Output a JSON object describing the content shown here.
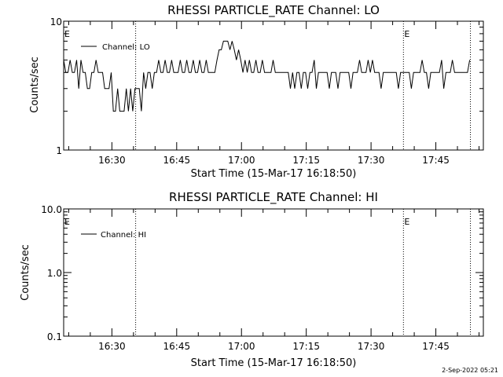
{
  "footer": {
    "timestamp": "2-Sep-2022 05:21"
  },
  "chart_data": [
    {
      "type": "line",
      "title": "RHESSI PARTICLE_RATE Channel: LO",
      "xlabel": "Start Time (15-Mar-17 16:18:50)",
      "ylabel": "Counts/sec",
      "yscale": "log",
      "xlim": [
        "16:18:50",
        "17:56:00"
      ],
      "ylim": [
        1,
        10
      ],
      "x_ticks": [
        "16:30",
        "16:45",
        "17:00",
        "17:15",
        "17:30",
        "17:45"
      ],
      "y_ticks": [
        "1",
        "10"
      ],
      "legend": {
        "entries": [
          "Channel: LO"
        ],
        "placement": "top-left"
      },
      "event_markers": {
        "times": [
          "16:35:30",
          "17:37:30",
          "17:53:00"
        ],
        "labels": [
          {
            "time": "16:18:50",
            "text": "E"
          },
          {
            "time": "17:37:30",
            "text": "E"
          }
        ]
      },
      "series": [
        {
          "name": "Channel: LO",
          "x": [
            "16:18:50",
            "16:19:20",
            "16:19:50",
            "16:20:20",
            "16:20:50",
            "16:21:20",
            "16:21:50",
            "16:22:20",
            "16:22:50",
            "16:23:20",
            "16:23:50",
            "16:24:20",
            "16:24:50",
            "16:25:20",
            "16:25:50",
            "16:26:20",
            "16:26:50",
            "16:27:20",
            "16:27:50",
            "16:28:20",
            "16:28:50",
            "16:29:20",
            "16:29:50",
            "16:30:20",
            "16:30:50",
            "16:31:20",
            "16:31:50",
            "16:32:20",
            "16:32:50",
            "16:33:20",
            "16:33:50",
            "16:34:20",
            "16:34:50",
            "16:35:20",
            "16:35:50",
            "16:36:20",
            "16:36:50",
            "16:37:20",
            "16:37:50",
            "16:38:20",
            "16:38:50",
            "16:39:20",
            "16:39:50",
            "16:40:20",
            "16:40:50",
            "16:41:20",
            "16:41:50",
            "16:42:20",
            "16:42:50",
            "16:43:20",
            "16:43:50",
            "16:44:20",
            "16:44:50",
            "16:45:20",
            "16:45:50",
            "16:46:20",
            "16:46:50",
            "16:47:20",
            "16:47:50",
            "16:48:20",
            "16:48:50",
            "16:49:20",
            "16:49:50",
            "16:50:20",
            "16:50:50",
            "16:51:20",
            "16:51:50",
            "16:52:20",
            "16:52:50",
            "16:53:20",
            "16:53:50",
            "16:54:20",
            "16:54:50",
            "16:55:20",
            "16:55:50",
            "16:56:20",
            "16:56:50",
            "16:57:20",
            "16:57:50",
            "16:58:20",
            "16:58:50",
            "16:59:20",
            "16:59:50",
            "17:00:20",
            "17:00:50",
            "17:01:20",
            "17:01:50",
            "17:02:20",
            "17:02:50",
            "17:03:20",
            "17:03:50",
            "17:04:20",
            "17:04:50",
            "17:05:20",
            "17:05:50",
            "17:06:20",
            "17:06:50",
            "17:07:20",
            "17:07:50",
            "17:08:20",
            "17:08:50",
            "17:09:20",
            "17:09:50",
            "17:10:20",
            "17:10:50",
            "17:11:20",
            "17:11:50",
            "17:12:20",
            "17:12:50",
            "17:13:20",
            "17:13:50",
            "17:14:20",
            "17:14:50",
            "17:15:20",
            "17:15:50",
            "17:16:20",
            "17:16:50",
            "17:17:20",
            "17:17:50",
            "17:18:20",
            "17:18:50",
            "17:19:20",
            "17:19:50",
            "17:20:20",
            "17:20:50",
            "17:21:20",
            "17:21:50",
            "17:22:20",
            "17:22:50",
            "17:23:20",
            "17:23:50",
            "17:24:20",
            "17:24:50",
            "17:25:20",
            "17:25:50",
            "17:26:20",
            "17:26:50",
            "17:27:20",
            "17:27:50",
            "17:28:20",
            "17:28:50",
            "17:29:20",
            "17:29:50",
            "17:30:20",
            "17:30:50",
            "17:31:20",
            "17:31:50",
            "17:32:20",
            "17:32:50",
            "17:33:20",
            "17:33:50",
            "17:34:20",
            "17:34:50",
            "17:35:20",
            "17:35:50",
            "17:36:20",
            "17:36:50",
            "17:37:20",
            "17:37:50",
            "17:38:20",
            "17:38:50",
            "17:39:20",
            "17:39:50",
            "17:40:20",
            "17:40:50",
            "17:41:20",
            "17:41:50",
            "17:42:20",
            "17:42:50",
            "17:43:20",
            "17:43:50",
            "17:44:20",
            "17:44:50",
            "17:45:20",
            "17:45:50",
            "17:46:20",
            "17:46:50",
            "17:47:20",
            "17:47:50",
            "17:48:20",
            "17:48:50",
            "17:49:20",
            "17:49:50",
            "17:50:20",
            "17:50:50",
            "17:51:20",
            "17:51:50",
            "17:52:20",
            "17:52:50"
          ],
          "values": [
            5,
            4,
            4,
            5,
            4,
            4,
            5,
            3,
            5,
            4,
            4,
            3,
            3,
            4,
            4,
            5,
            4,
            4,
            4,
            3,
            3,
            3,
            4,
            2,
            2,
            3,
            2,
            2,
            2,
            3,
            2,
            3,
            2,
            3,
            3,
            3,
            2,
            4,
            3,
            4,
            4,
            3,
            4,
            4,
            5,
            4,
            4,
            5,
            4,
            4,
            5,
            4,
            4,
            4,
            5,
            4,
            4,
            5,
            4,
            4,
            5,
            4,
            4,
            5,
            4,
            4,
            5,
            4,
            4,
            4,
            4,
            5,
            6,
            6,
            7,
            7,
            7,
            6,
            7,
            6,
            5,
            6,
            5,
            4,
            5,
            4,
            5,
            4,
            4,
            5,
            4,
            4,
            5,
            4,
            4,
            4,
            4,
            5,
            4,
            4,
            4,
            4,
            4,
            4,
            4,
            3,
            4,
            3,
            4,
            4,
            3,
            4,
            4,
            3,
            4,
            4,
            5,
            3,
            4,
            4,
            4,
            4,
            4,
            3,
            4,
            4,
            4,
            3,
            4,
            4,
            4,
            4,
            4,
            3,
            4,
            4,
            4,
            5,
            4,
            4,
            4,
            5,
            4,
            5,
            4,
            4,
            4,
            3,
            4,
            4,
            4,
            4,
            4,
            4,
            4,
            3,
            4,
            4,
            4,
            4,
            4,
            3,
            4,
            4,
            4,
            4,
            5,
            4,
            4,
            3,
            4,
            4,
            4,
            4,
            4,
            5,
            3,
            4,
            4,
            4,
            5,
            4,
            4,
            4,
            4,
            4,
            4,
            4,
            5
          ]
        }
      ]
    },
    {
      "type": "line",
      "title": "RHESSI PARTICLE_RATE Channel: HI",
      "xlabel": "Start Time (15-Mar-17 16:18:50)",
      "ylabel": "Counts/sec",
      "yscale": "log",
      "xlim": [
        "16:18:50",
        "17:56:00"
      ],
      "ylim": [
        0.1,
        10
      ],
      "x_ticks": [
        "16:30",
        "16:45",
        "17:00",
        "17:15",
        "17:30",
        "17:45"
      ],
      "y_ticks": [
        "0.1",
        "1.0",
        "10.0"
      ],
      "legend": {
        "entries": [
          "Channel: HI"
        ],
        "placement": "top-left"
      },
      "event_markers": {
        "times": [
          "16:35:30",
          "17:37:30",
          "17:53:00"
        ],
        "labels": [
          {
            "time": "16:18:50",
            "text": "E"
          },
          {
            "time": "17:37:30",
            "text": "E"
          }
        ]
      },
      "series": [
        {
          "name": "Channel: HI",
          "x": [],
          "values": []
        }
      ]
    }
  ]
}
